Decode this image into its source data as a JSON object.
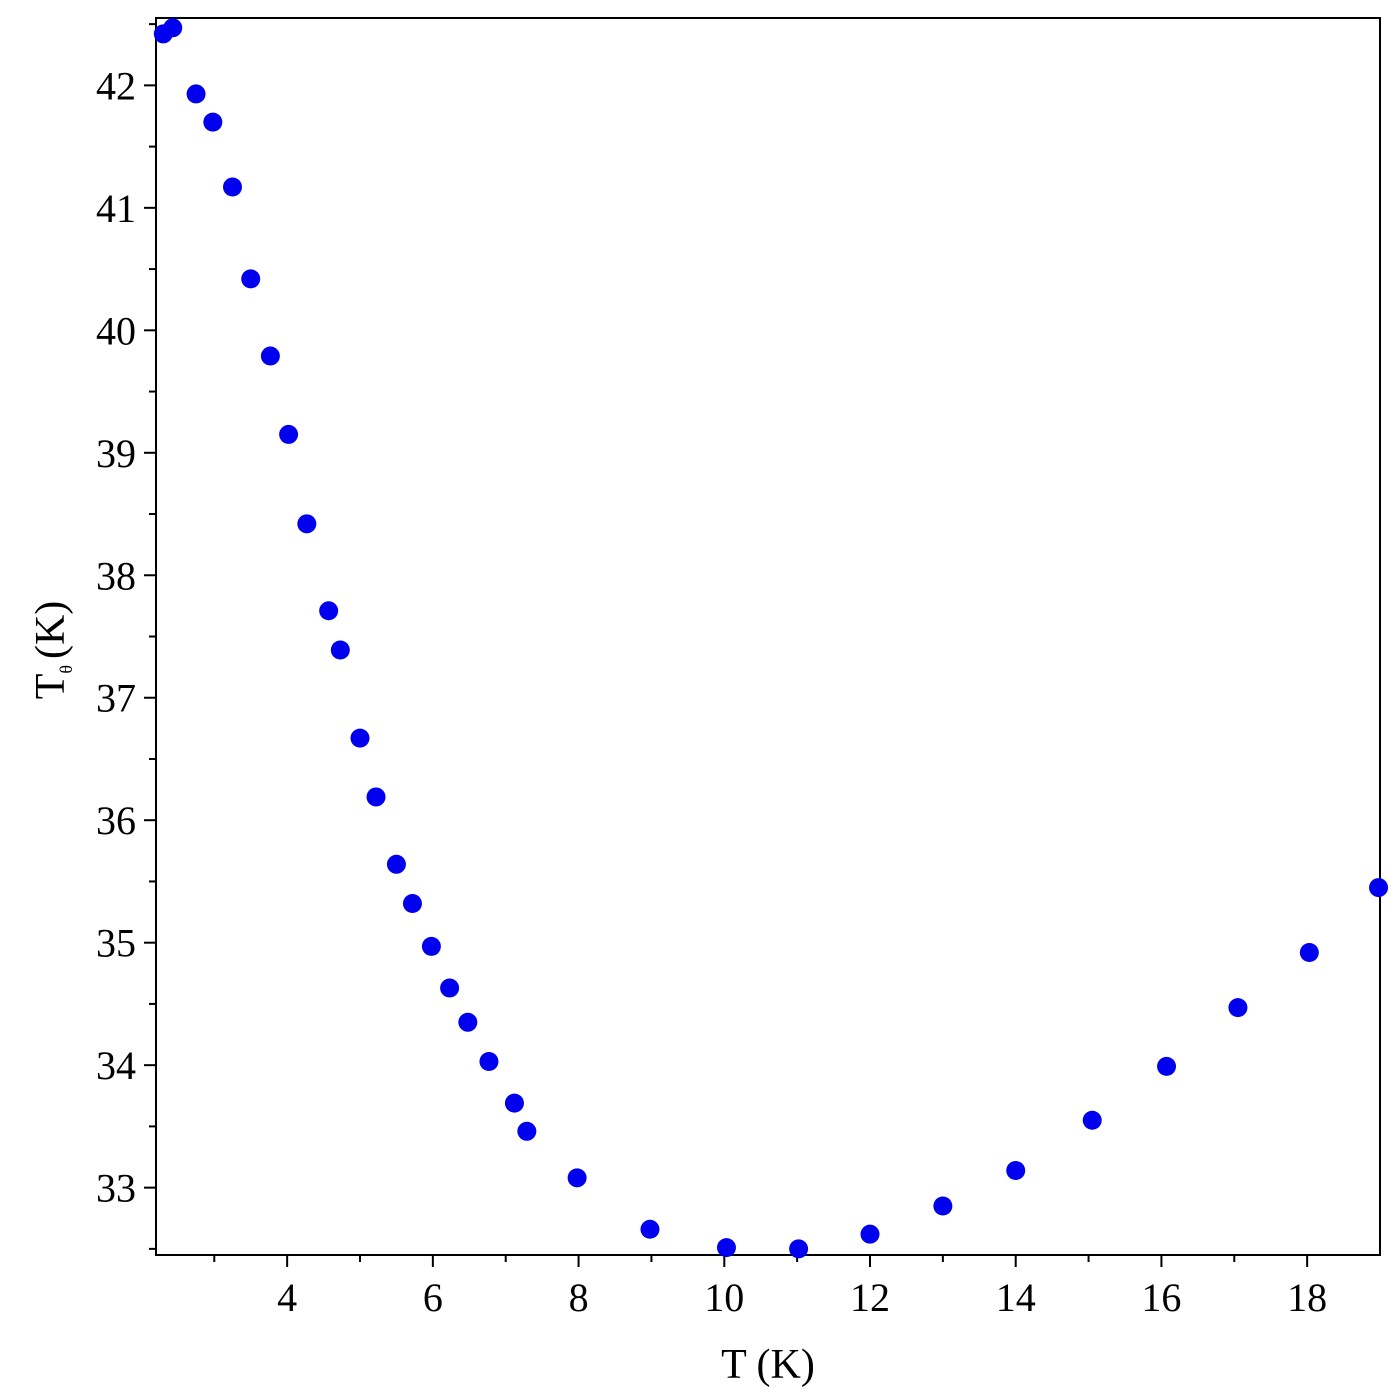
{
  "colors": {
    "marker": "#0000ee",
    "axis": "#000000",
    "background": "#ffffff"
  },
  "chart_data": {
    "type": "scatter",
    "title": "",
    "xlabel": "T (K)",
    "ylabel": {
      "main": "T",
      "subscript": "θ",
      "unit": "(K)"
    },
    "xlim": [
      2.2,
      19.0
    ],
    "ylim": [
      32.45,
      42.55
    ],
    "grid": false,
    "xticks": [
      4,
      6,
      8,
      10,
      12,
      14,
      16,
      18
    ],
    "xtick_labels": [
      "4",
      "6",
      "8",
      "10",
      "12",
      "14",
      "16",
      "18"
    ],
    "yticks": [
      33,
      34,
      35,
      36,
      37,
      38,
      39,
      40,
      41,
      42
    ],
    "ytick_labels": [
      "33",
      "34",
      "35",
      "36",
      "37",
      "38",
      "39",
      "40",
      "41",
      "42"
    ],
    "series": [
      {
        "points": [
          [
            2.3,
            42.42
          ],
          [
            2.43,
            42.47
          ],
          [
            2.75,
            41.93
          ],
          [
            2.98,
            41.7
          ],
          [
            3.25,
            41.17
          ],
          [
            3.5,
            40.42
          ],
          [
            3.77,
            39.79
          ],
          [
            4.02,
            39.15
          ],
          [
            4.27,
            38.42
          ],
          [
            4.57,
            37.71
          ],
          [
            4.73,
            37.39
          ],
          [
            5.0,
            36.67
          ],
          [
            5.22,
            36.19
          ],
          [
            5.5,
            35.64
          ],
          [
            5.72,
            35.32
          ],
          [
            5.98,
            34.97
          ],
          [
            6.23,
            34.63
          ],
          [
            6.48,
            34.35
          ],
          [
            6.77,
            34.03
          ],
          [
            7.12,
            33.69
          ],
          [
            7.29,
            33.46
          ],
          [
            7.98,
            33.08
          ],
          [
            8.98,
            32.66
          ],
          [
            10.03,
            32.51
          ],
          [
            11.02,
            32.5
          ],
          [
            12.0,
            32.62
          ],
          [
            13.0,
            32.85
          ],
          [
            14.0,
            33.14
          ],
          [
            15.05,
            33.55
          ],
          [
            16.07,
            33.99
          ],
          [
            17.05,
            34.47
          ],
          [
            18.03,
            34.92
          ],
          [
            18.98,
            35.45
          ]
        ]
      }
    ]
  }
}
